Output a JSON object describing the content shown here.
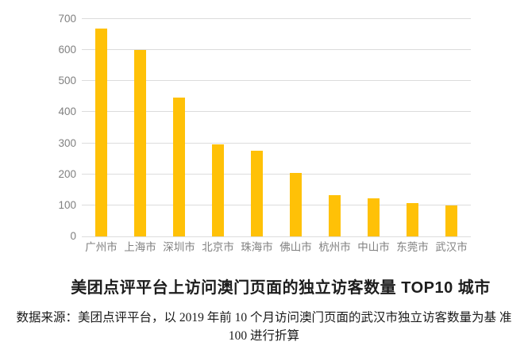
{
  "chart_data": {
    "type": "bar",
    "title": "美团点评平台上访问澳门页面的独立访客数量 TOP10 城市",
    "categories": [
      "广州市",
      "上海市",
      "深圳市",
      "北京市",
      "珠海市",
      "佛山市",
      "杭州市",
      "中山市",
      "东莞市",
      "武汉市"
    ],
    "values": [
      670,
      600,
      447,
      297,
      276,
      205,
      134,
      122,
      108,
      100
    ],
    "xlabel": "",
    "ylabel": "",
    "ylim": [
      0,
      700
    ],
    "yticks": [
      0,
      100,
      200,
      300,
      400,
      500,
      600,
      700
    ],
    "grid": true,
    "legend_position": "none",
    "bar_color": "#FFC107",
    "gridline_color": "#DCDCDC",
    "axis_label_color": "#808080"
  },
  "caption": {
    "source_note_lines": [
      "数据来源：美团点评平台，以 2019 年前 10 个月访问澳门页面的武汉市独立访客数量为基",
      "准 100 进行折算"
    ]
  }
}
